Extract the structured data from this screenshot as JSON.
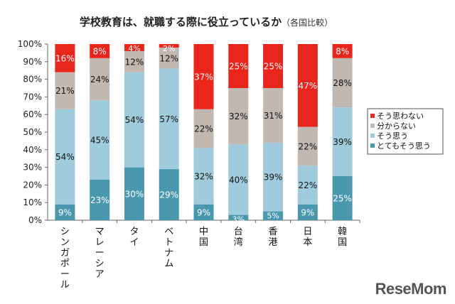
{
  "chart_data": {
    "type": "bar",
    "stacked": true,
    "title": "学校教育は、就職する際に役立っているか",
    "subtitle": "（各国比較）",
    "categories": [
      "シンガポール",
      "マレーシア",
      "タイ",
      "ベトナム",
      "中国",
      "台湾",
      "香港",
      "日本",
      "韓国"
    ],
    "series": [
      {
        "name": "とてもそう思う",
        "color": "#4a98ae",
        "values": [
          9,
          23,
          30,
          29,
          9,
          3,
          5,
          9,
          25
        ]
      },
      {
        "name": "そう思う",
        "color": "#9fcbdc",
        "values": [
          54,
          45,
          54,
          57,
          32,
          40,
          39,
          22,
          39
        ]
      },
      {
        "name": "分からない",
        "color": "#c0b8b1",
        "values": [
          21,
          24,
          12,
          12,
          22,
          32,
          31,
          22,
          28
        ]
      },
      {
        "name": "そう思わない",
        "color": "#e8261c",
        "values": [
          16,
          8,
          4,
          2,
          37,
          25,
          25,
          47,
          8
        ]
      }
    ],
    "ylim": [
      0,
      100
    ],
    "yticks": [
      "0%",
      "10%",
      "20%",
      "30%",
      "40%",
      "50%",
      "60%",
      "70%",
      "80%",
      "90%",
      "100%"
    ],
    "legend_order": [
      "そう思わない",
      "分からない",
      "そう思う",
      "とてもそう思う"
    ],
    "legend_position": "right",
    "grid": false
  },
  "watermark": "ReseMom"
}
